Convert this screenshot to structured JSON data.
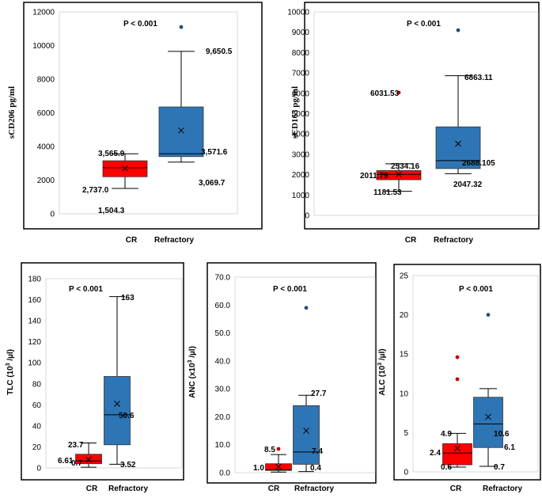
{
  "colors": {
    "cr": "#ff0000",
    "refractory": "#2e75b6",
    "outlier_blue": "#1f4e79",
    "outlier_red": "#c00000",
    "line": "#000000"
  },
  "chart_data": [
    {
      "id": "scd206",
      "type": "boxplot",
      "title": "",
      "ylabel": "sCD206 pg/ml",
      "ylim": [
        0,
        12000
      ],
      "yticks": [
        "0",
        "2000",
        "4000",
        "6000",
        "8000",
        "10000",
        "12000"
      ],
      "ytick_values": [
        0,
        2000,
        4000,
        6000,
        8000,
        10000,
        12000
      ],
      "p_value": "P < 0.001",
      "categories": [
        "CR",
        "Refractory"
      ],
      "boxes": [
        {
          "name": "CR",
          "min": 1504.3,
          "q1": 2200,
          "median": 2737.0,
          "q3": 3150,
          "max": 3565.9,
          "mean": 2700,
          "outliers": []
        },
        {
          "name": "Refractory",
          "min": 3069.7,
          "q1": 3400,
          "median": 3571.6,
          "q3": 6350,
          "max": 9650.5,
          "mean": 4950,
          "outliers": [
            11100
          ]
        }
      ],
      "labels": [
        "3,565.9",
        "2,737.0",
        "1,504.3",
        "9,650.5",
        "3,571.6",
        "3,069.7"
      ]
    },
    {
      "id": "scd163",
      "type": "boxplot",
      "ylabel": "sCD163 pg/ml",
      "ylim": [
        0,
        10000
      ],
      "yticks": [
        "0",
        "1000",
        "2000",
        "3000",
        "4000",
        "5000",
        "6000",
        "7000",
        "8000",
        "9000",
        "10000"
      ],
      "ytick_values": [
        0,
        1000,
        2000,
        3000,
        4000,
        5000,
        6000,
        7000,
        8000,
        9000,
        10000
      ],
      "p_value": "P < 0.001",
      "categories": [
        "CR",
        "Refractory"
      ],
      "boxes": [
        {
          "name": "CR",
          "min": 1181.53,
          "q1": 1750,
          "median": 2011.79,
          "q3": 2200,
          "max": 2534.16,
          "mean": 2020,
          "outliers": [
            6031.53
          ]
        },
        {
          "name": "Refractory",
          "min": 2047.32,
          "q1": 2300,
          "median": 2688.105,
          "q3": 4350,
          "max": 6863.11,
          "mean": 3520,
          "outliers": [
            9100
          ]
        }
      ],
      "labels": [
        "6031.53",
        "2534.16",
        "2011.79",
        "1181.53",
        "6863.11",
        "2688.105",
        "2047.32"
      ]
    },
    {
      "id": "tlc",
      "type": "boxplot",
      "ylabel_main": "TLC (10",
      "ylabel_sup": "3",
      "ylabel_end": " /µl)",
      "ylim": [
        0,
        180
      ],
      "yticks": [
        "0",
        "20",
        "40",
        "60",
        "80",
        "100",
        "120",
        "140",
        "160",
        "180"
      ],
      "ytick_values": [
        0,
        20,
        40,
        60,
        80,
        100,
        120,
        140,
        160,
        180
      ],
      "p_value": "P < 0.001",
      "categories": [
        "CR",
        "Refractory"
      ],
      "boxes": [
        {
          "name": "CR",
          "min": 0.7,
          "q1": 4,
          "median": 6.61,
          "q3": 13,
          "max": 23.7,
          "mean": 8,
          "outliers": []
        },
        {
          "name": "Refractory",
          "min": 3.52,
          "q1": 22,
          "median": 50.6,
          "q3": 87,
          "max": 163,
          "mean": 61,
          "outliers": []
        }
      ],
      "labels": [
        "23.7",
        "6.61",
        "0.7",
        "163",
        "50.6",
        "3.52"
      ]
    },
    {
      "id": "anc",
      "type": "boxplot",
      "ylabel_main": "ANC (x10",
      "ylabel_sup": "3",
      "ylabel_end": " /µl)",
      "ylim": [
        0,
        70
      ],
      "yticks": [
        "0.0",
        "10.0",
        "20.0",
        "30.0",
        "40.0",
        "50.0",
        "60.0",
        "70.0"
      ],
      "ytick_values": [
        0,
        10,
        20,
        30,
        40,
        50,
        60,
        70
      ],
      "p_value": "P < 0.001",
      "categories": [
        "CR",
        "Refractory"
      ],
      "boxes": [
        {
          "name": "CR",
          "min": 0.2,
          "q1": 0.8,
          "median": 1.0,
          "q3": 3.2,
          "max": 6.5,
          "mean": 2.1,
          "outliers": [
            8.5
          ]
        },
        {
          "name": "Refractory",
          "min": 0.4,
          "q1": 3,
          "median": 7.4,
          "q3": 24,
          "max": 27.7,
          "mean": 15,
          "outliers": [
            59
          ]
        }
      ],
      "labels": [
        "8.5",
        "1.0",
        "27.7",
        "7.4",
        "0.4"
      ]
    },
    {
      "id": "alc",
      "type": "boxplot",
      "ylabel_main": "ALC (10",
      "ylabel_sup": "3",
      "ylabel_end": " /µl)",
      "ylim": [
        0,
        25
      ],
      "yticks": [
        "0",
        "5",
        "10",
        "15",
        "20",
        "25"
      ],
      "ytick_values": [
        0,
        5,
        10,
        15,
        20,
        25
      ],
      "p_value": "P < 0.001",
      "categories": [
        "CR",
        "Refractory"
      ],
      "boxes": [
        {
          "name": "CR",
          "min": 0.6,
          "q1": 0.9,
          "median": 2.4,
          "q3": 3.6,
          "max": 4.9,
          "mean": 3.0,
          "outliers": [
            11.8,
            14.6
          ]
        },
        {
          "name": "Refractory",
          "min": 0.7,
          "q1": 3.1,
          "median": 6.1,
          "q3": 9.5,
          "max": 10.6,
          "mean": 7.0,
          "outliers": [
            20
          ]
        }
      ],
      "labels": [
        "4.9",
        "2.4",
        "0.6",
        "10.6",
        "6.1",
        "0.7"
      ]
    }
  ]
}
